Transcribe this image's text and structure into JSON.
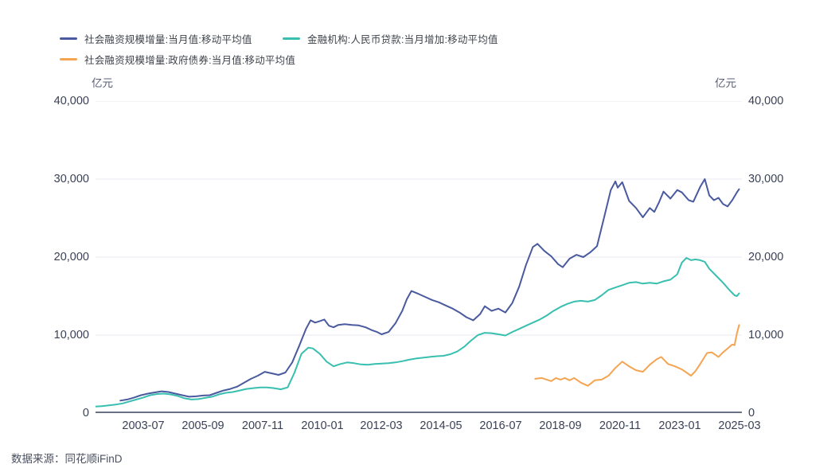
{
  "legend": {
    "items": [
      {
        "label": "社会融资规模增量:当月值:移动平均值",
        "color": "#4a5a9e"
      },
      {
        "label": "金融机构:人民币贷款:当月增加:移动平均值",
        "color": "#38bfb0"
      },
      {
        "label": "社会融资规模增量:政府债券:当月值:移动平均值",
        "color": "#f5a452"
      }
    ]
  },
  "source_note": "数据来源：同花顺iFinD",
  "colors": {
    "background": "#ffffff",
    "grid": "#e9eaf0",
    "axis": "#39425c",
    "tick_text": "#3a4156",
    "legend_text": "#3f444b",
    "source_text": "#4b5060",
    "series_navy": "#4a5a9e",
    "series_teal": "#38bfb0",
    "series_orange": "#f5a452"
  },
  "chart_data": {
    "type": "line",
    "unit_label_left": "亿元",
    "unit_label_right": "亿元",
    "ylim": [
      0,
      40000
    ],
    "y_ticks": [
      0,
      10000,
      20000,
      30000,
      40000
    ],
    "y_tick_labels": [
      "0",
      "10,000",
      "20,000",
      "30,000",
      "40,000"
    ],
    "x_tick_labels": [
      "2003-07",
      "2005-09",
      "2007-11",
      "2010-01",
      "2012-03",
      "2014-05",
      "2016-07",
      "2018-09",
      "2020-11",
      "2023-01",
      "2025-03"
    ],
    "x_tick_step_months": 26,
    "grid": "horizontal",
    "legend_position": "top-left",
    "series": [
      {
        "name": "社会融资规模增量:当月值:移动平均值",
        "color": "#4a5a9e",
        "points": [
          [
            "2002-09",
            1600
          ],
          [
            "2002-12",
            1750
          ],
          [
            "2003-03",
            2000
          ],
          [
            "2003-06",
            2300
          ],
          [
            "2003-09",
            2500
          ],
          [
            "2003-12",
            2650
          ],
          [
            "2004-03",
            2800
          ],
          [
            "2004-06",
            2700
          ],
          [
            "2004-09",
            2500
          ],
          [
            "2004-12",
            2300
          ],
          [
            "2005-03",
            2100
          ],
          [
            "2005-06",
            2150
          ],
          [
            "2005-09",
            2250
          ],
          [
            "2005-12",
            2300
          ],
          [
            "2006-03",
            2600
          ],
          [
            "2006-06",
            2900
          ],
          [
            "2006-09",
            3100
          ],
          [
            "2006-12",
            3400
          ],
          [
            "2007-03",
            3900
          ],
          [
            "2007-06",
            4400
          ],
          [
            "2007-09",
            4800
          ],
          [
            "2007-12",
            5300
          ],
          [
            "2008-03",
            5100
          ],
          [
            "2008-06",
            4900
          ],
          [
            "2008-09",
            5200
          ],
          [
            "2008-12",
            6500
          ],
          [
            "2009-03",
            8600
          ],
          [
            "2009-06",
            10800
          ],
          [
            "2009-08",
            11900
          ],
          [
            "2009-10",
            11600
          ],
          [
            "2009-12",
            11800
          ],
          [
            "2010-02",
            12000
          ],
          [
            "2010-04",
            11200
          ],
          [
            "2010-06",
            11000
          ],
          [
            "2010-08",
            11300
          ],
          [
            "2010-11",
            11400
          ],
          [
            "2011-02",
            11300
          ],
          [
            "2011-05",
            11250
          ],
          [
            "2011-08",
            11000
          ],
          [
            "2011-11",
            10600
          ],
          [
            "2012-01",
            10400
          ],
          [
            "2012-03",
            10100
          ],
          [
            "2012-06",
            10400
          ],
          [
            "2012-09",
            11500
          ],
          [
            "2012-12",
            13100
          ],
          [
            "2013-02",
            14600
          ],
          [
            "2013-04",
            15650
          ],
          [
            "2013-07",
            15300
          ],
          [
            "2013-10",
            14900
          ],
          [
            "2014-01",
            14500
          ],
          [
            "2014-04",
            14200
          ],
          [
            "2014-07",
            13800
          ],
          [
            "2014-10",
            13400
          ],
          [
            "2015-01",
            12900
          ],
          [
            "2015-04",
            12300
          ],
          [
            "2015-07",
            11900
          ],
          [
            "2015-10",
            12700
          ],
          [
            "2015-12",
            13700
          ],
          [
            "2016-03",
            13100
          ],
          [
            "2016-06",
            13400
          ],
          [
            "2016-09",
            12900
          ],
          [
            "2016-12",
            14100
          ],
          [
            "2017-03",
            16200
          ],
          [
            "2017-06",
            19000
          ],
          [
            "2017-09",
            21300
          ],
          [
            "2017-11",
            21700
          ],
          [
            "2018-02",
            20800
          ],
          [
            "2018-05",
            20100
          ],
          [
            "2018-08",
            19100
          ],
          [
            "2018-10",
            18700
          ],
          [
            "2019-01",
            19800
          ],
          [
            "2019-04",
            20300
          ],
          [
            "2019-07",
            20000
          ],
          [
            "2019-10",
            20600
          ],
          [
            "2020-01",
            21400
          ],
          [
            "2020-04",
            25000
          ],
          [
            "2020-07",
            28600
          ],
          [
            "2020-09",
            29700
          ],
          [
            "2020-10",
            28900
          ],
          [
            "2020-12",
            29600
          ],
          [
            "2021-03",
            27200
          ],
          [
            "2021-06",
            26300
          ],
          [
            "2021-09",
            25100
          ],
          [
            "2021-12",
            26300
          ],
          [
            "2022-02",
            25800
          ],
          [
            "2022-04",
            27000
          ],
          [
            "2022-06",
            28400
          ],
          [
            "2022-09",
            27500
          ],
          [
            "2022-12",
            28600
          ],
          [
            "2023-02",
            28300
          ],
          [
            "2023-05",
            27300
          ],
          [
            "2023-07",
            27100
          ],
          [
            "2023-10",
            29000
          ],
          [
            "2023-12",
            30000
          ],
          [
            "2024-02",
            27900
          ],
          [
            "2024-04",
            27300
          ],
          [
            "2024-06",
            27600
          ],
          [
            "2024-08",
            26800
          ],
          [
            "2024-10",
            26500
          ],
          [
            "2024-12",
            27300
          ],
          [
            "2025-02",
            28300
          ],
          [
            "2025-03",
            28700
          ]
        ]
      },
      {
        "name": "金融机构:人民币贷款:当月增加:移动平均值",
        "color": "#38bfb0",
        "points": [
          [
            "2001-10",
            850
          ],
          [
            "2002-01",
            900
          ],
          [
            "2002-04",
            1000
          ],
          [
            "2002-07",
            1100
          ],
          [
            "2002-10",
            1250
          ],
          [
            "2003-01",
            1500
          ],
          [
            "2003-04",
            1750
          ],
          [
            "2003-07",
            2000
          ],
          [
            "2003-10",
            2300
          ],
          [
            "2004-01",
            2450
          ],
          [
            "2004-04",
            2500
          ],
          [
            "2004-07",
            2400
          ],
          [
            "2004-10",
            2200
          ],
          [
            "2005-01",
            1900
          ],
          [
            "2005-04",
            1750
          ],
          [
            "2005-07",
            1800
          ],
          [
            "2005-10",
            1950
          ],
          [
            "2006-01",
            2100
          ],
          [
            "2006-04",
            2400
          ],
          [
            "2006-07",
            2600
          ],
          [
            "2006-10",
            2700
          ],
          [
            "2007-01",
            2900
          ],
          [
            "2007-04",
            3100
          ],
          [
            "2007-07",
            3200
          ],
          [
            "2007-10",
            3300
          ],
          [
            "2008-01",
            3300
          ],
          [
            "2008-04",
            3200
          ],
          [
            "2008-07",
            3050
          ],
          [
            "2008-10",
            3300
          ],
          [
            "2009-01",
            5200
          ],
          [
            "2009-04",
            7600
          ],
          [
            "2009-07",
            8400
          ],
          [
            "2009-09",
            8300
          ],
          [
            "2009-12",
            7600
          ],
          [
            "2010-03",
            6600
          ],
          [
            "2010-06",
            6000
          ],
          [
            "2010-09",
            6300
          ],
          [
            "2010-12",
            6500
          ],
          [
            "2011-03",
            6400
          ],
          [
            "2011-06",
            6250
          ],
          [
            "2011-09",
            6200
          ],
          [
            "2011-12",
            6300
          ],
          [
            "2012-03",
            6350
          ],
          [
            "2012-06",
            6400
          ],
          [
            "2012-09",
            6500
          ],
          [
            "2012-12",
            6650
          ],
          [
            "2013-03",
            6850
          ],
          [
            "2013-06",
            7000
          ],
          [
            "2013-09",
            7100
          ],
          [
            "2013-12",
            7200
          ],
          [
            "2014-03",
            7300
          ],
          [
            "2014-06",
            7350
          ],
          [
            "2014-09",
            7550
          ],
          [
            "2014-12",
            7900
          ],
          [
            "2015-03",
            8500
          ],
          [
            "2015-06",
            9300
          ],
          [
            "2015-09",
            10000
          ],
          [
            "2015-12",
            10300
          ],
          [
            "2016-03",
            10250
          ],
          [
            "2016-06",
            10100
          ],
          [
            "2016-09",
            9950
          ],
          [
            "2016-12",
            10400
          ],
          [
            "2017-03",
            10800
          ],
          [
            "2017-06",
            11200
          ],
          [
            "2017-09",
            11600
          ],
          [
            "2017-12",
            12000
          ],
          [
            "2018-03",
            12500
          ],
          [
            "2018-06",
            13100
          ],
          [
            "2018-09",
            13600
          ],
          [
            "2018-12",
            14000
          ],
          [
            "2019-03",
            14300
          ],
          [
            "2019-06",
            14400
          ],
          [
            "2019-09",
            14300
          ],
          [
            "2019-12",
            14500
          ],
          [
            "2020-03",
            15100
          ],
          [
            "2020-06",
            15800
          ],
          [
            "2020-09",
            16100
          ],
          [
            "2020-12",
            16400
          ],
          [
            "2021-03",
            16700
          ],
          [
            "2021-06",
            16800
          ],
          [
            "2021-09",
            16600
          ],
          [
            "2021-12",
            16700
          ],
          [
            "2022-03",
            16600
          ],
          [
            "2022-06",
            16900
          ],
          [
            "2022-09",
            17100
          ],
          [
            "2022-12",
            17800
          ],
          [
            "2023-02",
            19300
          ],
          [
            "2023-04",
            19900
          ],
          [
            "2023-06",
            19600
          ],
          [
            "2023-08",
            19700
          ],
          [
            "2023-10",
            19600
          ],
          [
            "2023-12",
            19400
          ],
          [
            "2024-02",
            18500
          ],
          [
            "2024-05",
            17600
          ],
          [
            "2024-08",
            16700
          ],
          [
            "2024-11",
            15700
          ],
          [
            "2025-01",
            15100
          ],
          [
            "2025-02",
            15000
          ],
          [
            "2025-03",
            15350
          ]
        ]
      },
      {
        "name": "社会融资规模增量:政府债券:当月值:移动平均值",
        "color": "#f5a452",
        "points": [
          [
            "2017-10",
            4400
          ],
          [
            "2018-01",
            4500
          ],
          [
            "2018-03",
            4300
          ],
          [
            "2018-05",
            4100
          ],
          [
            "2018-07",
            4500
          ],
          [
            "2018-09",
            4300
          ],
          [
            "2018-11",
            4500
          ],
          [
            "2019-01",
            4200
          ],
          [
            "2019-03",
            4500
          ],
          [
            "2019-06",
            3900
          ],
          [
            "2019-09",
            3500
          ],
          [
            "2019-12",
            4200
          ],
          [
            "2020-03",
            4300
          ],
          [
            "2020-06",
            4800
          ],
          [
            "2020-09",
            5800
          ],
          [
            "2020-12",
            6600
          ],
          [
            "2021-03",
            6000
          ],
          [
            "2021-06",
            5500
          ],
          [
            "2021-09",
            5300
          ],
          [
            "2021-12",
            6200
          ],
          [
            "2022-03",
            6900
          ],
          [
            "2022-05",
            7200
          ],
          [
            "2022-08",
            6300
          ],
          [
            "2022-11",
            6000
          ],
          [
            "2023-02",
            5600
          ],
          [
            "2023-06",
            4800
          ],
          [
            "2023-08",
            5400
          ],
          [
            "2023-10",
            6300
          ],
          [
            "2024-01",
            7700
          ],
          [
            "2024-03",
            7800
          ],
          [
            "2024-06",
            7200
          ],
          [
            "2024-08",
            7800
          ],
          [
            "2024-10",
            8300
          ],
          [
            "2024-12",
            8800
          ],
          [
            "2025-01",
            8700
          ],
          [
            "2025-02",
            10200
          ],
          [
            "2025-03",
            11300
          ]
        ]
      }
    ]
  }
}
